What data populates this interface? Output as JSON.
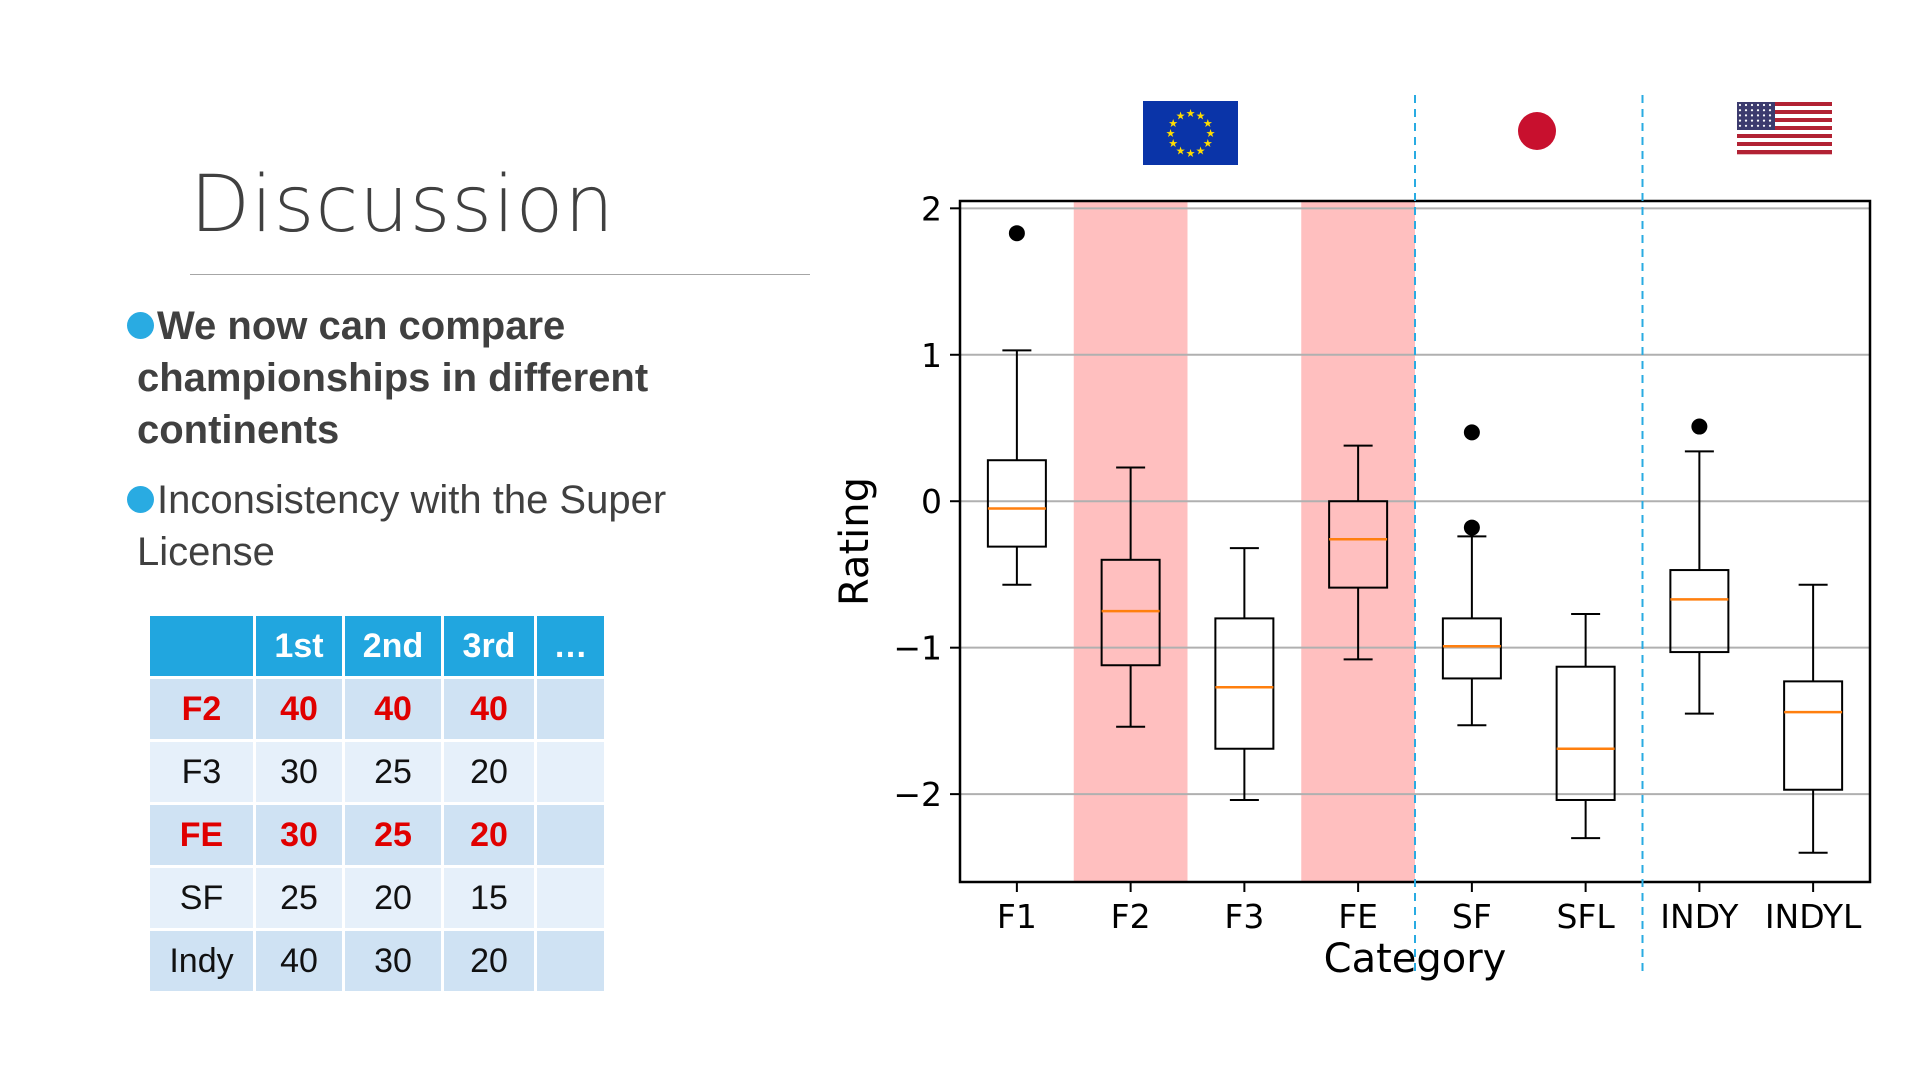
{
  "slide": {
    "title": "Discussion",
    "bullets": [
      {
        "text": "We now can compare championships in different continents",
        "bold": true
      },
      {
        "text": "Inconsistency with the Super License",
        "bold": false
      }
    ]
  },
  "points_table": {
    "headers": [
      "",
      "1st",
      "2nd",
      "3rd",
      "…"
    ],
    "rows": [
      {
        "label": "F2",
        "values": [
          "40",
          "40",
          "40"
        ],
        "highlight": true
      },
      {
        "label": "F3",
        "values": [
          "30",
          "25",
          "20"
        ],
        "highlight": false
      },
      {
        "label": "FE",
        "values": [
          "30",
          "25",
          "20"
        ],
        "highlight": true
      },
      {
        "label": "SF",
        "values": [
          "25",
          "20",
          "15"
        ],
        "highlight": false
      },
      {
        "label": "Indy",
        "values": [
          "40",
          "30",
          "20"
        ],
        "highlight": false
      }
    ]
  },
  "flags": [
    {
      "name": "eu-flag",
      "region": "Europe",
      "categories": [
        "F1",
        "F2",
        "F3",
        "FE"
      ]
    },
    {
      "name": "japan-flag",
      "region": "Japan",
      "categories": [
        "SF",
        "SFL"
      ]
    },
    {
      "name": "usa-flag",
      "region": "USA",
      "categories": [
        "INDY",
        "INDYL"
      ]
    }
  ],
  "colors": {
    "accent": "#21a6df",
    "highlight_band": "#ffbfbf",
    "median": "#ff7f0e",
    "table_highlight_text": "#e00000",
    "divider": "#29abe2"
  },
  "chart_data": {
    "type": "boxplot",
    "xlabel": "Category",
    "ylabel": "Rating",
    "ylim": [
      -2.6,
      2.05
    ],
    "yticks": [
      2,
      1,
      0,
      -1,
      -2
    ],
    "ytick_labels": [
      "2",
      "1",
      "0",
      "−1",
      "−2"
    ],
    "grid": "horizontal",
    "categories": [
      "F1",
      "F2",
      "F3",
      "FE",
      "SF",
      "SFL",
      "INDY",
      "INDYL"
    ],
    "highlighted": [
      "F2",
      "FE"
    ],
    "region_dividers_after": [
      "FE",
      "SFL"
    ],
    "boxes": [
      {
        "category": "F1",
        "whisker_low": -0.57,
        "q1": -0.31,
        "median": -0.05,
        "q3": 0.28,
        "whisker_high": 1.03,
        "outliers": [
          1.83
        ]
      },
      {
        "category": "F2",
        "whisker_low": -1.54,
        "q1": -1.12,
        "median": -0.75,
        "q3": -0.4,
        "whisker_high": 0.23,
        "outliers": []
      },
      {
        "category": "F3",
        "whisker_low": -2.04,
        "q1": -1.69,
        "median": -1.27,
        "q3": -0.8,
        "whisker_high": -0.32,
        "outliers": []
      },
      {
        "category": "FE",
        "whisker_low": -1.08,
        "q1": -0.59,
        "median": -0.26,
        "q3": 0.0,
        "whisker_high": 0.38,
        "outliers": []
      },
      {
        "category": "SF",
        "whisker_low": -1.53,
        "q1": -1.21,
        "median": -0.99,
        "q3": -0.8,
        "whisker_high": -0.24,
        "outliers": [
          0.47,
          -0.18
        ]
      },
      {
        "category": "SFL",
        "whisker_low": -2.3,
        "q1": -2.04,
        "median": -1.69,
        "q3": -1.13,
        "whisker_high": -0.77,
        "outliers": []
      },
      {
        "category": "INDY",
        "whisker_low": -1.45,
        "q1": -1.03,
        "median": -0.67,
        "q3": -0.47,
        "whisker_high": 0.34,
        "outliers": [
          0.51
        ]
      },
      {
        "category": "INDYL",
        "whisker_low": -2.4,
        "q1": -1.97,
        "median": -1.44,
        "q3": -1.23,
        "whisker_high": -0.57,
        "outliers": []
      }
    ]
  }
}
